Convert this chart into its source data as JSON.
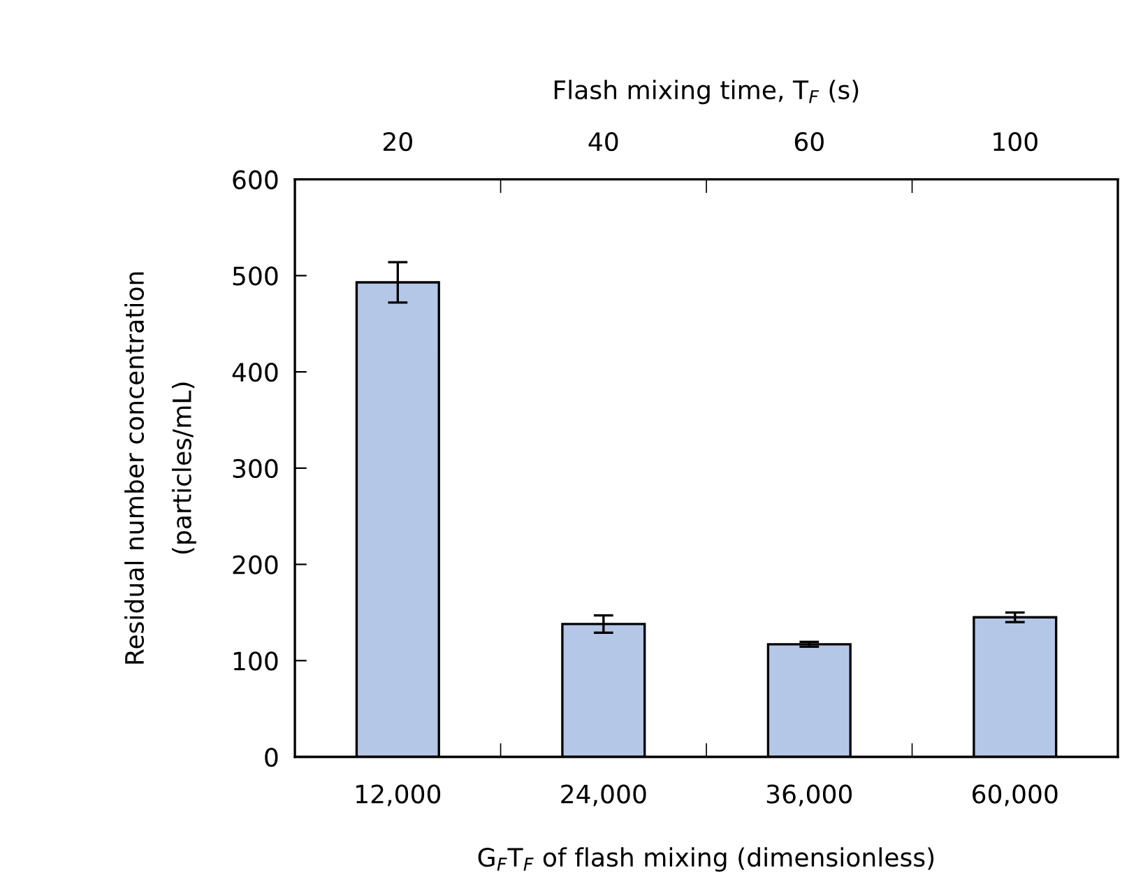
{
  "chart_data": {
    "type": "bar",
    "xlabel": "G$_{F}$T$_{F}$ of flash mixing (dimensionless)",
    "x2label": "Flash mixing time, T$_{F}$ (s)",
    "ylabel": "Residual number concentration\n(particles/mL)",
    "categories": [
      "12,000",
      "24,000",
      "36,000",
      "60,000"
    ],
    "annotations": [
      "20",
      "40",
      "60",
      "100"
    ],
    "values": [
      493,
      138,
      117,
      145
    ],
    "errors": [
      21,
      9,
      2.5,
      5
    ],
    "color": "#b4c7e7",
    "ylim": [
      0,
      600
    ],
    "yticks": [
      0,
      100,
      200,
      300,
      400,
      500,
      600
    ],
    "grid": false,
    "legend": false
  }
}
